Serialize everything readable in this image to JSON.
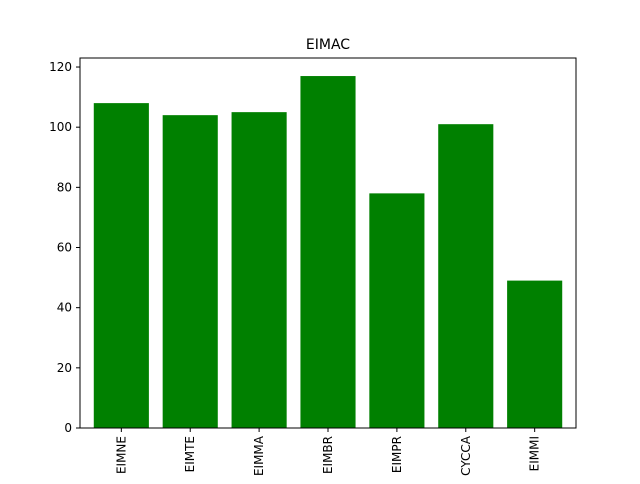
{
  "chart_data": {
    "type": "bar",
    "title": "EIMAC",
    "xlabel": "",
    "ylabel": "",
    "categories": [
      "EIMNE",
      "EIMTE",
      "EIMMA",
      "EIMBR",
      "EIMPR",
      "CYCCA",
      "EIMMI"
    ],
    "values": [
      108,
      104,
      105,
      117,
      78,
      101,
      49
    ],
    "ylim": [
      0,
      123
    ],
    "yticks": [
      0,
      20,
      40,
      60,
      80,
      100,
      120
    ],
    "grid": false,
    "bar_color": "#008000"
  }
}
